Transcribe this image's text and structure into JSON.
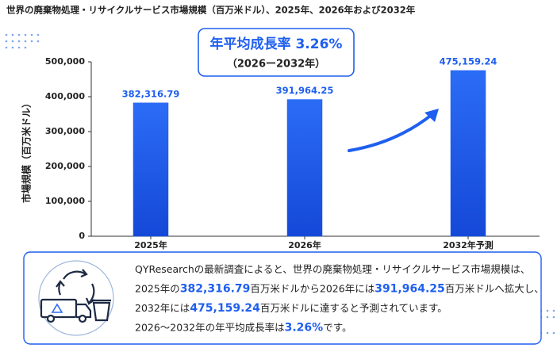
{
  "chart_data": {
    "type": "bar",
    "title": "世界の廃棄物処理・リサイクルサービス市場規模（百万米ドル）、2025年、2026年および2032年",
    "cagr_title": "年平均成長率 3.26%",
    "cagr_period": "（2026ー2032年）",
    "y_label": "市場規模（百万米ドル）",
    "categories": [
      "2025年",
      "2026年",
      "2032年予測"
    ],
    "values": [
      382316.79,
      391964.25,
      475159.24
    ],
    "value_labels": [
      "382,316.79",
      "391,964.25",
      "475,159.24"
    ],
    "color": "#1f5fef",
    "ylim": [
      0,
      500000
    ],
    "yticks": [
      0,
      {
        "value": 100000,
        "label": "100,000"
      },
      {
        "value": 200000,
        "label": "200,000"
      },
      {
        "value": 300000,
        "label": "300,000"
      },
      {
        "value": 400000,
        "label": "400,000"
      },
      {
        "value": 500000,
        "label": "500,000"
      }
    ],
    "grid": false,
    "summary": [
      [
        "QYResearchの最新調査によると、世界の廃棄物処理・リサイクルサービス市場規模は、"
      ],
      [
        "2025年の",
        "382,316.79",
        "百万米ドルから2026年には",
        "391,964.25",
        "百万米ドルへ拡大し、"
      ],
      [
        "2032年には",
        "475,159.24",
        "百万米ドルに達すると予測されています。"
      ],
      [
        "2026～2032年の年平均成長率は",
        "3.26%",
        "です。"
      ]
    ]
  }
}
